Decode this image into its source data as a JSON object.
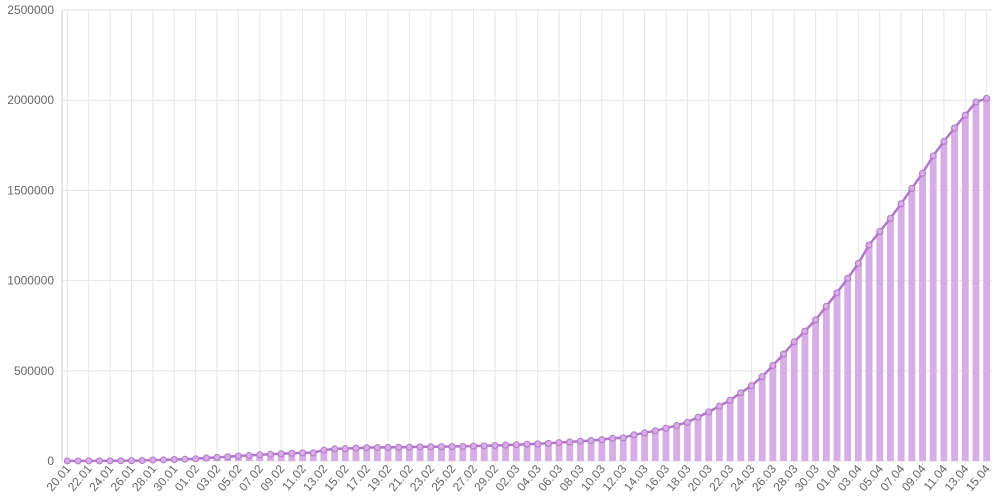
{
  "chart_data": {
    "type": "bar",
    "line_overlay": true,
    "color": "#d6aee3",
    "line_color": "#b475cc",
    "grid": true,
    "categories": [
      "20.01",
      null,
      "22.01",
      null,
      "24.01",
      null,
      "26.01",
      null,
      "28.01",
      null,
      "30.01",
      null,
      "01.02",
      null,
      "03.02",
      null,
      "05.02",
      null,
      "07.02",
      null,
      "09.02",
      null,
      "11.02",
      null,
      "13.02",
      null,
      "15.02",
      null,
      "17.02",
      null,
      "19.02",
      null,
      "21.02",
      null,
      "23.02",
      null,
      "25.02",
      null,
      "27.02",
      null,
      "29.02",
      null,
      "02.03",
      null,
      "04.03",
      null,
      "06.03",
      null,
      "08.03",
      null,
      "10.03",
      null,
      "12.03",
      null,
      "14.03",
      null,
      "16.03",
      null,
      "18.03",
      null,
      "20.03",
      null,
      "22.03",
      null,
      "24.03",
      null,
      "26.03",
      null,
      "28.03",
      null,
      "30.03",
      null,
      "01.04",
      null,
      "03.04",
      null,
      "05.04",
      null,
      "07.04",
      null,
      "09.04",
      null,
      "11.04",
      null,
      "13.04",
      null,
      "15.04"
    ],
    "values": [
      282,
      314,
      555,
      654,
      941,
      1434,
      2118,
      2927,
      5578,
      6166,
      8234,
      9927,
      12038,
      16787,
      19881,
      23892,
      27635,
      30817,
      34391,
      37120,
      40150,
      42762,
      44802,
      45221,
      60368,
      66885,
      69030,
      71224,
      73258,
      75136,
      75639,
      76197,
      76819,
      78572,
      78958,
      79561,
      80406,
      81388,
      82746,
      84112,
      86011,
      88369,
      90306,
      92840,
      95120,
      97886,
      101801,
      105847,
      109821,
      113590,
      118620,
      125875,
      128352,
      145205,
      156101,
      167454,
      181574,
      197102,
      214821,
      242570,
      272208,
      304507,
      336953,
      378235,
      418045,
      467653,
      529591,
      593291,
      660706,
      720117,
      782365,
      857487,
      932605,
      1013157,
      1095917,
      1197405,
      1272115,
      1345101,
      1426096,
      1511104,
      1595350,
      1691719,
      1771514,
      1846680,
      1917320,
      1990000,
      2010000
    ],
    "ylim": [
      0,
      2500000
    ],
    "yticks": [
      0,
      500000,
      1000000,
      1500000,
      2000000,
      2500000
    ]
  }
}
